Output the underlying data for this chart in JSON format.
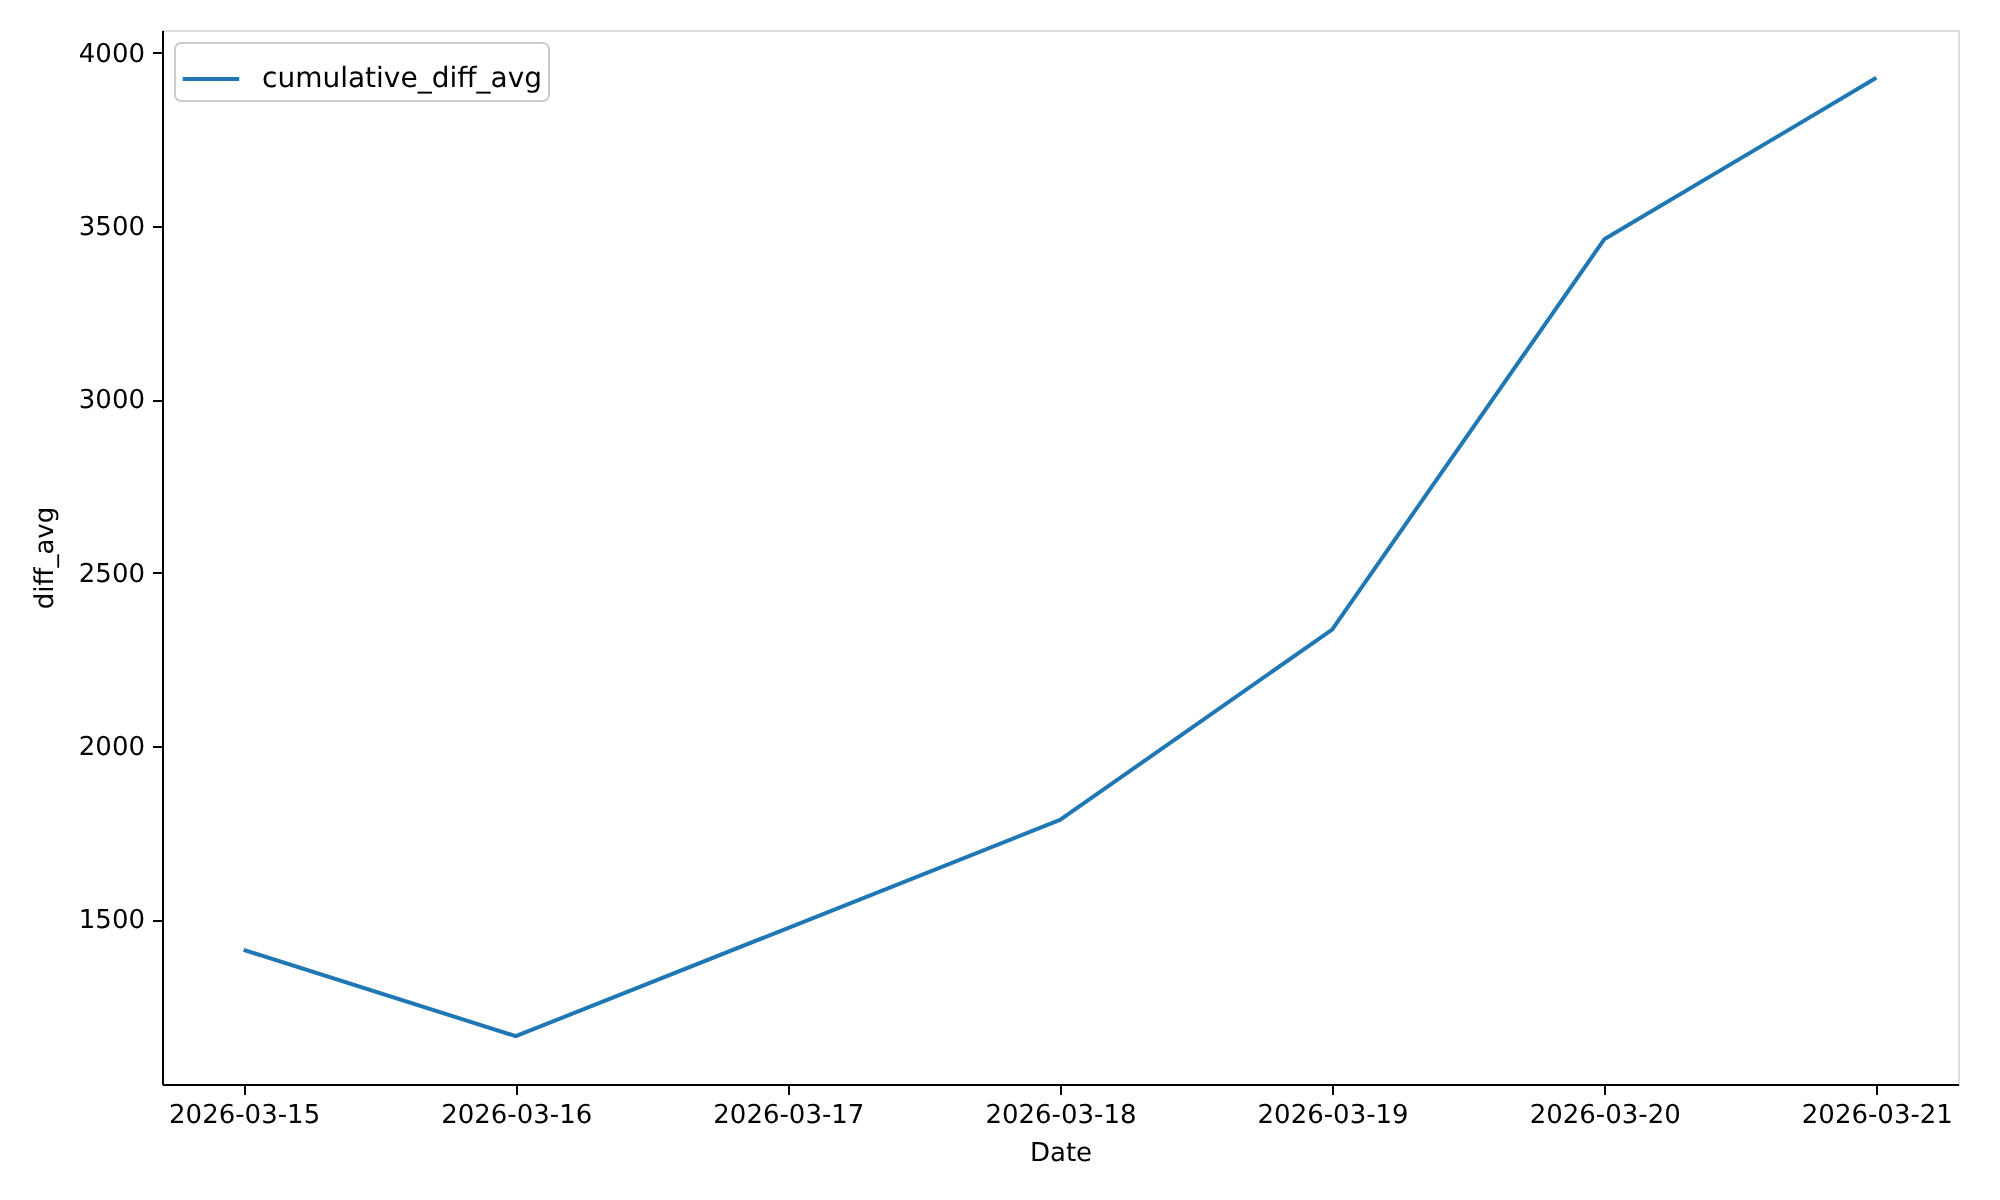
{
  "chart_data": {
    "type": "line",
    "xlabel": "Date",
    "ylabel": "diff_avg",
    "x": [
      "2026-03-15",
      "2026-03-16",
      "2026-03-17",
      "2026-03-18",
      "2026-03-19",
      "2026-03-20",
      "2026-03-21"
    ],
    "series": [
      {
        "name": "cumulative_diff_avg",
        "color": "#1f77b4",
        "values": [
          1412,
          1163,
          1475,
          1787,
          2336,
          3462,
          3928
        ]
      }
    ],
    "xlim": [
      "2026-03-14T16:48",
      "2026-03-21T07:12"
    ],
    "ylim": [
      1025,
      4066
    ],
    "xticks": [
      "2026-03-15",
      "2026-03-16",
      "2026-03-17",
      "2026-03-18",
      "2026-03-19",
      "2026-03-20",
      "2026-03-21"
    ],
    "yticks": [
      1500,
      2000,
      2500,
      3000,
      3500,
      4000
    ],
    "grid": false,
    "legend": "top left",
    "line_style": "solid"
  }
}
